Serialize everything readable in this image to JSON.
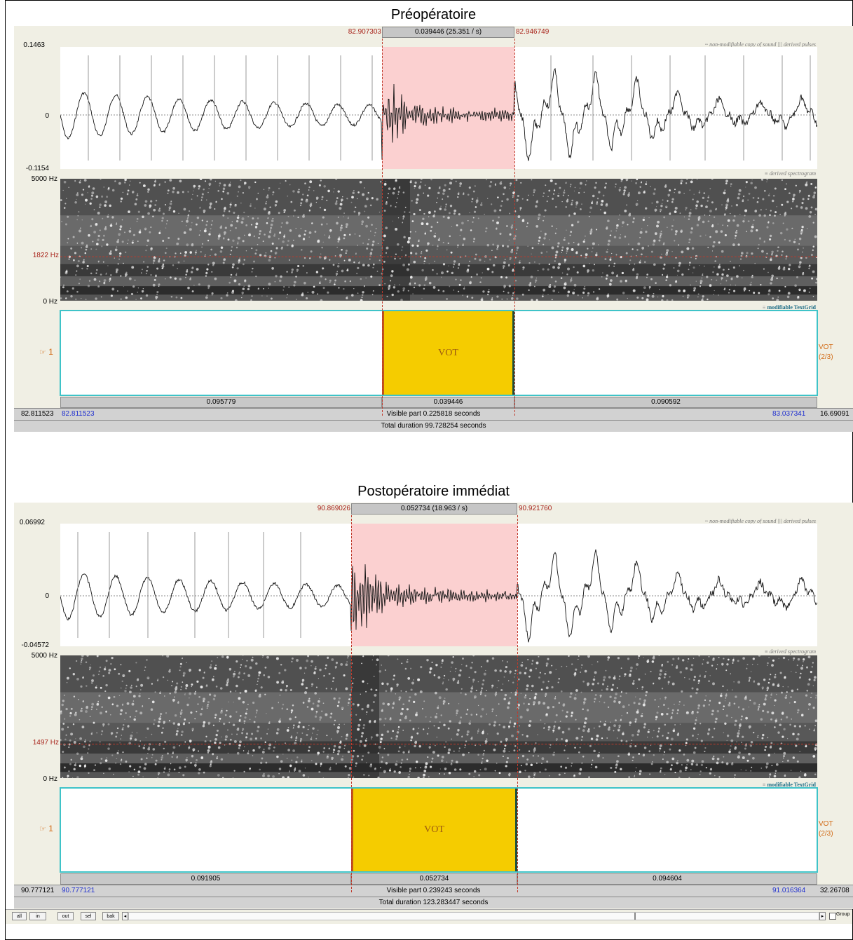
{
  "panels": [
    {
      "title": "Préopératoire",
      "sel_start": "82.907303",
      "sel_dur": "0.039446 (25.351 / s)",
      "sel_end": "82.946749",
      "amp_max": "0.1463",
      "amp_zero": "0",
      "amp_min": "-0.1154",
      "wave_legend": "~ non-modifiable copy of sound",
      "pulses_legend": "derived pulses",
      "spec_top": "5000 Hz",
      "spec_cursor": "1822 Hz",
      "spec_bottom": "0 Hz",
      "spec_legend": "derived spectrogram",
      "tg_legend": "modifiable TextGrid",
      "tier_number": "1",
      "interval_label": "VOT",
      "tier_name": "VOT",
      "tier_count": "(2/3)",
      "dur_left": "0.095779",
      "dur_mid": "0.039446",
      "dur_right": "0.090592",
      "win_start_outer": "82.811523",
      "win_start": "82.811523",
      "visible": "Visible part 0.225818 seconds",
      "win_end": "83.037341",
      "win_end_outer": "16.69091",
      "total": "Total duration 99.728254 seconds"
    },
    {
      "title": "Postopératoire immédiat",
      "sel_start": "90.869026",
      "sel_dur": "0.052734 (18.963 / s)",
      "sel_end": "90.921760",
      "amp_max": "0.06992",
      "amp_zero": "0",
      "amp_min": "-0.04572",
      "wave_legend": "~ non-modifiable copy of sound",
      "pulses_legend": "derived pulses",
      "spec_top": "5000 Hz",
      "spec_cursor": "1497 Hz",
      "spec_bottom": "0 Hz",
      "spec_legend": "derived spectrogram",
      "tg_legend": "modifiable TextGrid",
      "tier_number": "1",
      "interval_label": "VOT",
      "tier_name": "VOT",
      "tier_count": "(2/3)",
      "dur_left": "0.091905",
      "dur_mid": "0.052734",
      "dur_right": "0.094604",
      "win_start_outer": "90.777121",
      "win_start": "90.777121",
      "visible": "Visible part 0.239243 seconds",
      "win_end": "91.016364",
      "win_end_outer": "32.26708",
      "total": "Total duration 123.283447 seconds"
    }
  ],
  "bottom_bar": {
    "buttons": [
      "all",
      "in",
      "out",
      "sel",
      "bak"
    ],
    "group_label": "Group"
  },
  "colors": {
    "selection": "#fbd0d0",
    "interval": "#f5cc00",
    "tier_border": "#3fc3c8",
    "red_text": "#a8231a",
    "blue_text": "#1f2fd0"
  }
}
